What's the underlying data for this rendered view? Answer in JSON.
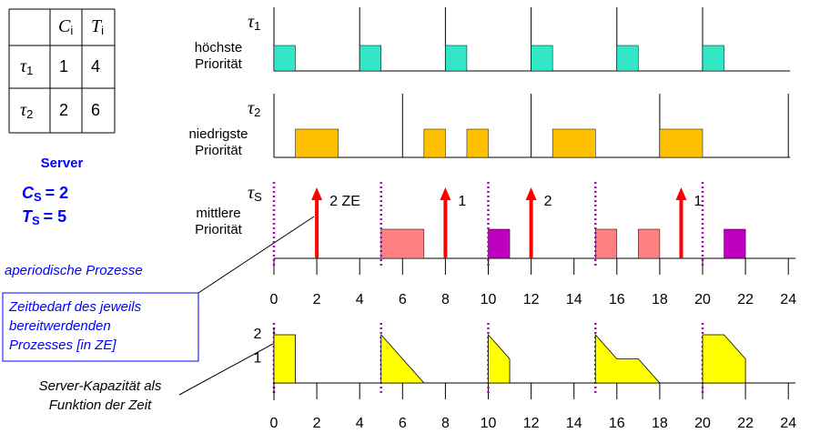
{
  "table": {
    "columns": [
      {
        "symbol": "C",
        "index": "i"
      },
      {
        "symbol": "T",
        "index": "i"
      }
    ],
    "rows": [
      {
        "task": {
          "symbol": "τ",
          "index": "1"
        },
        "C": 1,
        "T": 4
      },
      {
        "task": {
          "symbol": "τ",
          "index": "2"
        },
        "C": 2,
        "T": 6
      }
    ]
  },
  "server": {
    "title": "Server",
    "C": {
      "symbol": "C",
      "index": "S",
      "text": "= 2"
    },
    "T": {
      "symbol": "T",
      "index": "S",
      "text": "= 5"
    }
  },
  "aperiodic_label": "aperiodische Prozesse",
  "note_box": [
    "Zeitbedarf des jeweils",
    "bereitwerdenden",
    "Prozesses [in ZE]"
  ],
  "capacity_note": [
    "Server-Kapazität als",
    "Funktion der Zeit"
  ],
  "axis_ticks": [
    0,
    2,
    4,
    6,
    8,
    10,
    12,
    14,
    16,
    18,
    20,
    22,
    24
  ],
  "tasks": [
    {
      "label": {
        "symbol": "τ",
        "index": "1"
      },
      "priority": [
        "höchste",
        "Priorität"
      ],
      "color": "#33e6c6",
      "releases": [
        0,
        4,
        8,
        12,
        16,
        20
      ],
      "jobs": [
        [
          0,
          1
        ],
        [
          4,
          5
        ],
        [
          8,
          9
        ],
        [
          12,
          13
        ],
        [
          16,
          17
        ],
        [
          20,
          21
        ]
      ]
    },
    {
      "label": {
        "symbol": "τ",
        "index": "2"
      },
      "priority": [
        "niedrigste",
        "Priorität"
      ],
      "color": "#ffc000",
      "releases": [
        0,
        6,
        12,
        18,
        24
      ],
      "jobs": [
        [
          1,
          3
        ],
        [
          7,
          8
        ],
        [
          9,
          10
        ],
        [
          13,
          15
        ],
        [
          18,
          20
        ]
      ]
    }
  ],
  "server_row": {
    "label": {
      "symbol": "τ",
      "index": "S"
    },
    "priority": [
      "mittlere",
      "Priorität"
    ],
    "replenish": [
      0,
      5,
      10,
      15,
      20
    ],
    "arrivals": [
      {
        "t": 2,
        "label": "2 ZE"
      },
      {
        "t": 8,
        "label": "1"
      },
      {
        "t": 12,
        "label": "2"
      },
      {
        "t": 19,
        "label": "1"
      }
    ],
    "jobs": [
      {
        "start": 5,
        "end": 7,
        "color": "#ff8080"
      },
      {
        "start": 10,
        "end": 11,
        "color": "#c000c0"
      },
      {
        "start": 15,
        "end": 16,
        "color": "#ff8080"
      },
      {
        "start": 17,
        "end": 18,
        "color": "#ff8080"
      },
      {
        "start": 21,
        "end": 22,
        "color": "#c000c0"
      }
    ]
  },
  "capacity": {
    "yticks": [
      2,
      1
    ],
    "color": "#ffff00",
    "pieces": [
      {
        "t": [
          0,
          0,
          1,
          1
        ],
        "c": [
          0,
          2,
          2,
          0
        ]
      },
      {
        "t": [
          5,
          5,
          7
        ],
        "c": [
          0,
          2,
          0
        ]
      },
      {
        "t": [
          10,
          10,
          11,
          11
        ],
        "c": [
          0,
          2,
          1,
          0
        ]
      },
      {
        "t": [
          15,
          15,
          16,
          17,
          18
        ],
        "c": [
          0,
          2,
          1,
          1,
          0
        ]
      },
      {
        "t": [
          20,
          20,
          21,
          22,
          22
        ],
        "c": [
          0,
          2,
          2,
          1,
          0
        ]
      }
    ]
  }
}
